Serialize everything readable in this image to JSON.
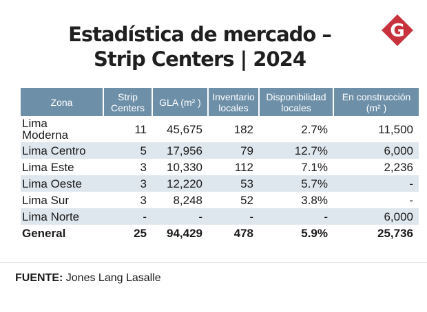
{
  "title": {
    "line1": "Estadística de mercado –",
    "line2": "Strip Centers | 2024"
  },
  "logo": {
    "letter": "G",
    "color": "#c8323c"
  },
  "table": {
    "headers": {
      "zona": "Zona",
      "strip": [
        "Strip",
        "Centers"
      ],
      "gla": "GLA (m² )",
      "inventario": [
        "Inventario",
        "locales"
      ],
      "disponibilidad": [
        "Disponibilidad",
        "locales"
      ],
      "construccion": [
        "En construcción",
        "(m² )"
      ]
    },
    "rows": [
      [
        "Lima Moderna",
        "11",
        "45,675",
        "182",
        "2.7%",
        "11,500"
      ],
      [
        "Lima Centro",
        "5",
        "17,956",
        "79",
        "12.7%",
        "6,000"
      ],
      [
        "Lima Este",
        "3",
        "10,330",
        "112",
        "7.1%",
        "2,236"
      ],
      [
        "Lima Oeste",
        "3",
        "12,220",
        "53",
        "5.7%",
        "-"
      ],
      [
        "Lima Sur",
        "3",
        "8,248",
        "52",
        "3.8%",
        "-"
      ],
      [
        "Lima Norte",
        "-",
        "-",
        "-",
        "-",
        "6,000"
      ]
    ],
    "total": [
      "General",
      "25",
      "94,429",
      "478",
      "5.9%",
      "25,736"
    ]
  },
  "source": {
    "label": "FUENTE:",
    "text": "Jones Lang Lasalle"
  },
  "colors": {
    "header": "#6d8fa8",
    "stripe": "#dfe7ee"
  }
}
